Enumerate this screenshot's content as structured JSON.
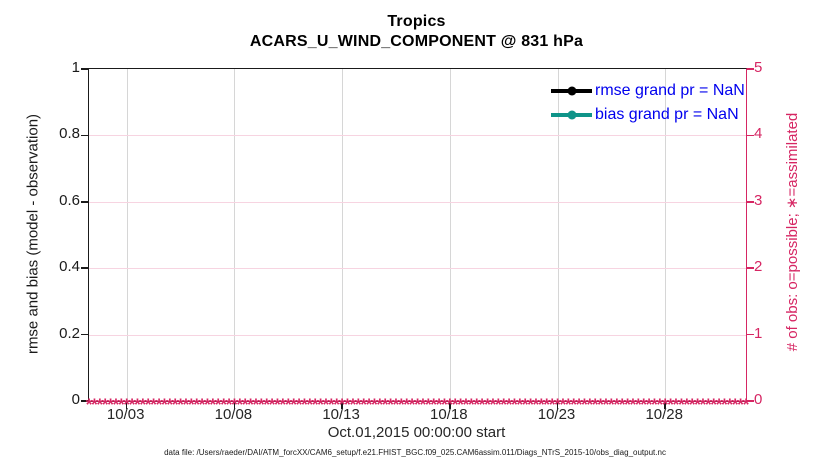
{
  "figure": {
    "title_line1": "Tropics",
    "title_line2": "ACARS_U_WIND_COMPONENT @ 831 hPa",
    "xlabel": "Oct.01,2015 00:00:00 start",
    "footer": "data file: /Users/raeder/DAI/ATM_forcXX/CAM6_setup/f.e21.FHIST_BGC.f09_025.CAM6assim.011/Diags_NTrS_2015-10/obs_diag_output.nc"
  },
  "colors": {
    "obs_axis_pink": "#d62663",
    "grid_gray": "#d6d6d6",
    "grid_pink": "#f7d4e1",
    "legend_text_blue": "#0000ee",
    "rmse_black": "#000000",
    "bias_teal": "#0f9489"
  },
  "legend": {
    "items": [
      {
        "label": "rmse grand pr = NaN",
        "color": "#000000"
      },
      {
        "label": "bias grand pr = NaN",
        "color": "#0f9489"
      }
    ]
  },
  "axes": {
    "left": {
      "label": "rmse and bias (model - observation)",
      "ticks": [
        "0",
        "0.2",
        "0.4",
        "0.6",
        "0.8",
        "1"
      ],
      "tick_values": [
        0,
        0.2,
        0.4,
        0.6,
        0.8,
        1
      ],
      "range": [
        0,
        1
      ],
      "color": "#000000"
    },
    "right": {
      "label": "# of obs: o=possible; ∗=assimilated",
      "ticks": [
        "0",
        "1",
        "2",
        "3",
        "4",
        "5"
      ],
      "tick_values": [
        0,
        1,
        2,
        3,
        4,
        5
      ],
      "gridline_values": [
        1,
        2,
        3,
        4
      ],
      "range": [
        0,
        5
      ],
      "color": "#d62663"
    },
    "x": {
      "ticks": [
        "10/03",
        "10/08",
        "10/13",
        "10/18",
        "10/23",
        "10/28"
      ],
      "tick_days": [
        2,
        7,
        12,
        17,
        22,
        27
      ],
      "range_days": [
        0.25,
        30.75
      ]
    }
  },
  "chart_data": {
    "type": "line",
    "title": "Tropics",
    "subtitle": "ACARS_U_WIND_COMPONENT @ 831 hPa",
    "xlabel": "Oct.01,2015 00:00:00 start",
    "ylabel_left": "rmse and bias (model - observation)",
    "ylabel_right": "# of obs: o=possible; ∗=assimilated",
    "x_axis": {
      "tick_labels": [
        "10/03",
        "10/08",
        "10/13",
        "10/18",
        "10/23",
        "10/28"
      ],
      "range_days_from_oct1": [
        0.25,
        30.75
      ]
    },
    "ylim_left": [
      0,
      1
    ],
    "ylim_right": [
      0,
      5
    ],
    "grid": true,
    "legend_position": "top-right-inside",
    "series": [
      {
        "name": "rmse grand pr = NaN",
        "axis": "left",
        "color": "#000000",
        "marker": "circle",
        "values": [],
        "note": "grand prior = NaN, no curve plotted"
      },
      {
        "name": "bias grand pr = NaN",
        "axis": "left",
        "color": "#0f9489",
        "marker": "circle",
        "values": [],
        "note": "grand prior = NaN, no curve plotted"
      },
      {
        "name": "num_obs_assimilated",
        "axis": "right",
        "color": "#d62663",
        "marker": "*",
        "x_start_day": 0.25,
        "x_end_day": 30.75,
        "x_step_days": 0.25,
        "constant_value": 0
      }
    ]
  }
}
